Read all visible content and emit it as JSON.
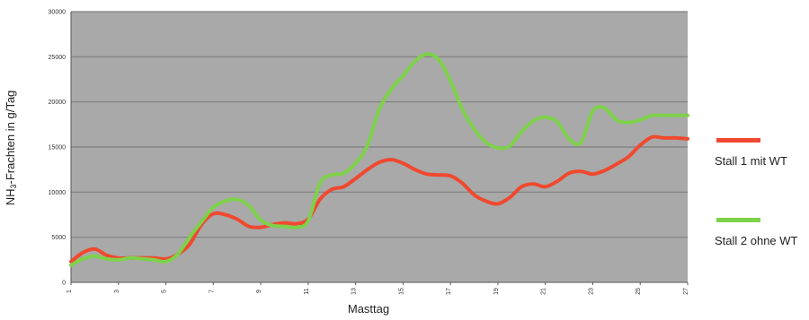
{
  "chart_data": {
    "type": "line",
    "title": "",
    "xlabel": "Masttag",
    "ylabel_parts": [
      "NH",
      "3",
      "-Frachten in g/Tag"
    ],
    "ylim": [
      0,
      30000
    ],
    "yticks": [
      0,
      5000,
      10000,
      15000,
      20000,
      25000,
      30000
    ],
    "xlim": [
      1,
      27
    ],
    "xtick_labels": [
      "1",
      "3",
      "5",
      "7",
      "9",
      "11",
      "13",
      "15",
      "17",
      "19",
      "21",
      "23",
      "25",
      "27"
    ],
    "grid": true,
    "legend_position": "right",
    "colors": {
      "plot_bg": "#a9a9a9",
      "grid": "#7f7f7f"
    },
    "x": [
      1,
      1.5,
      2,
      2.5,
      3,
      3.5,
      4,
      4.5,
      5,
      5.5,
      6,
      6.5,
      7,
      7.5,
      8,
      8.5,
      9,
      9.5,
      10,
      10.5,
      11,
      11.5,
      12,
      12.5,
      13,
      13.5,
      14,
      14.5,
      15,
      15.5,
      16,
      16.5,
      17,
      17.5,
      18,
      18.5,
      19,
      19.5,
      20,
      20.5,
      21,
      21.5,
      22,
      22.5,
      23,
      23.5,
      24,
      24.5,
      25,
      25.5,
      26,
      26.5,
      27
    ],
    "series": [
      {
        "name": "Stall 1 mit WT",
        "color": "#f0492f",
        "values": [
          2300,
          3300,
          3700,
          3000,
          2700,
          2700,
          2700,
          2700,
          2600,
          3100,
          4200,
          6400,
          7600,
          7500,
          7000,
          6200,
          6100,
          6400,
          6600,
          6500,
          7000,
          9200,
          10300,
          10600,
          11500,
          12500,
          13300,
          13600,
          13200,
          12500,
          12000,
          11900,
          11800,
          11000,
          9700,
          9000,
          8700,
          9400,
          10600,
          10900,
          10600,
          11200,
          12100,
          12300,
          12000,
          12400,
          13100,
          13900,
          15200,
          16100,
          16000,
          16000,
          15900
        ]
      },
      {
        "name": "Stall 2 ohne WT",
        "color": "#7ed14a",
        "values": [
          1900,
          2600,
          2900,
          2600,
          2500,
          2700,
          2600,
          2500,
          2300,
          3100,
          5000,
          6700,
          8300,
          9000,
          9200,
          8500,
          6900,
          6300,
          6200,
          6100,
          6800,
          11000,
          11900,
          12100,
          13200,
          15200,
          19200,
          21400,
          22900,
          24500,
          25300,
          24700,
          22300,
          19200,
          17000,
          15500,
          14900,
          15100,
          16700,
          17900,
          18300,
          17800,
          15900,
          15500,
          19000,
          19300,
          18000,
          17700,
          18000,
          18500,
          18500,
          18500,
          18500
        ]
      }
    ]
  }
}
